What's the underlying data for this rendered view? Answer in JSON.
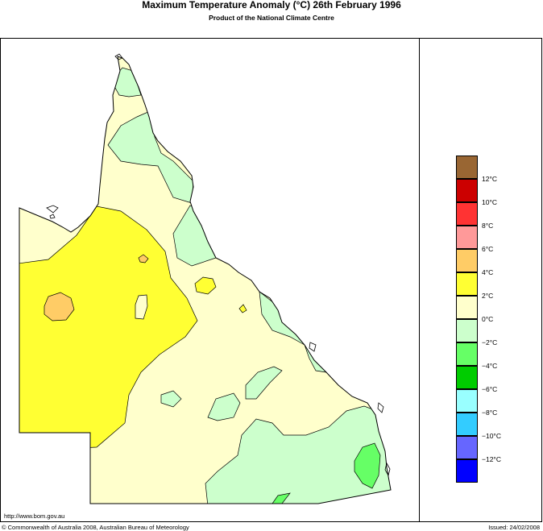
{
  "title": "Maximum Temperature Anomaly (°C)  26th February 1996",
  "subtitle": "Product of the National Climate Centre",
  "legend": {
    "categories": [
      {
        "label": "",
        "color": "#996633"
      },
      {
        "label": "12°C",
        "color": "#cc0000"
      },
      {
        "label": "10°C",
        "color": "#ff3333"
      },
      {
        "label": "8°C",
        "color": "#ff9999"
      },
      {
        "label": "6°C",
        "color": "#ffcc66"
      },
      {
        "label": "4°C",
        "color": "#ffff33"
      },
      {
        "label": "2°C",
        "color": "#ffffcc"
      },
      {
        "label": "0°C",
        "color": "#ccffcc"
      },
      {
        "label": "−2°C",
        "color": "#66ff66"
      },
      {
        "label": "−4°C",
        "color": "#00cc00"
      },
      {
        "label": "−6°C",
        "color": "#99ffff"
      },
      {
        "label": "−8°C",
        "color": "#33ccff"
      },
      {
        "label": "−10°C",
        "color": "#6666ff"
      },
      {
        "label": "−12°C",
        "color": "#0000ff"
      }
    ]
  },
  "footer": {
    "url": "http://www.bom.gov.au",
    "copyright": "© Commonwealth of Australia 2008, Australian Bureau of Meteorology",
    "issued": "Issued: 24/02/2008"
  }
}
